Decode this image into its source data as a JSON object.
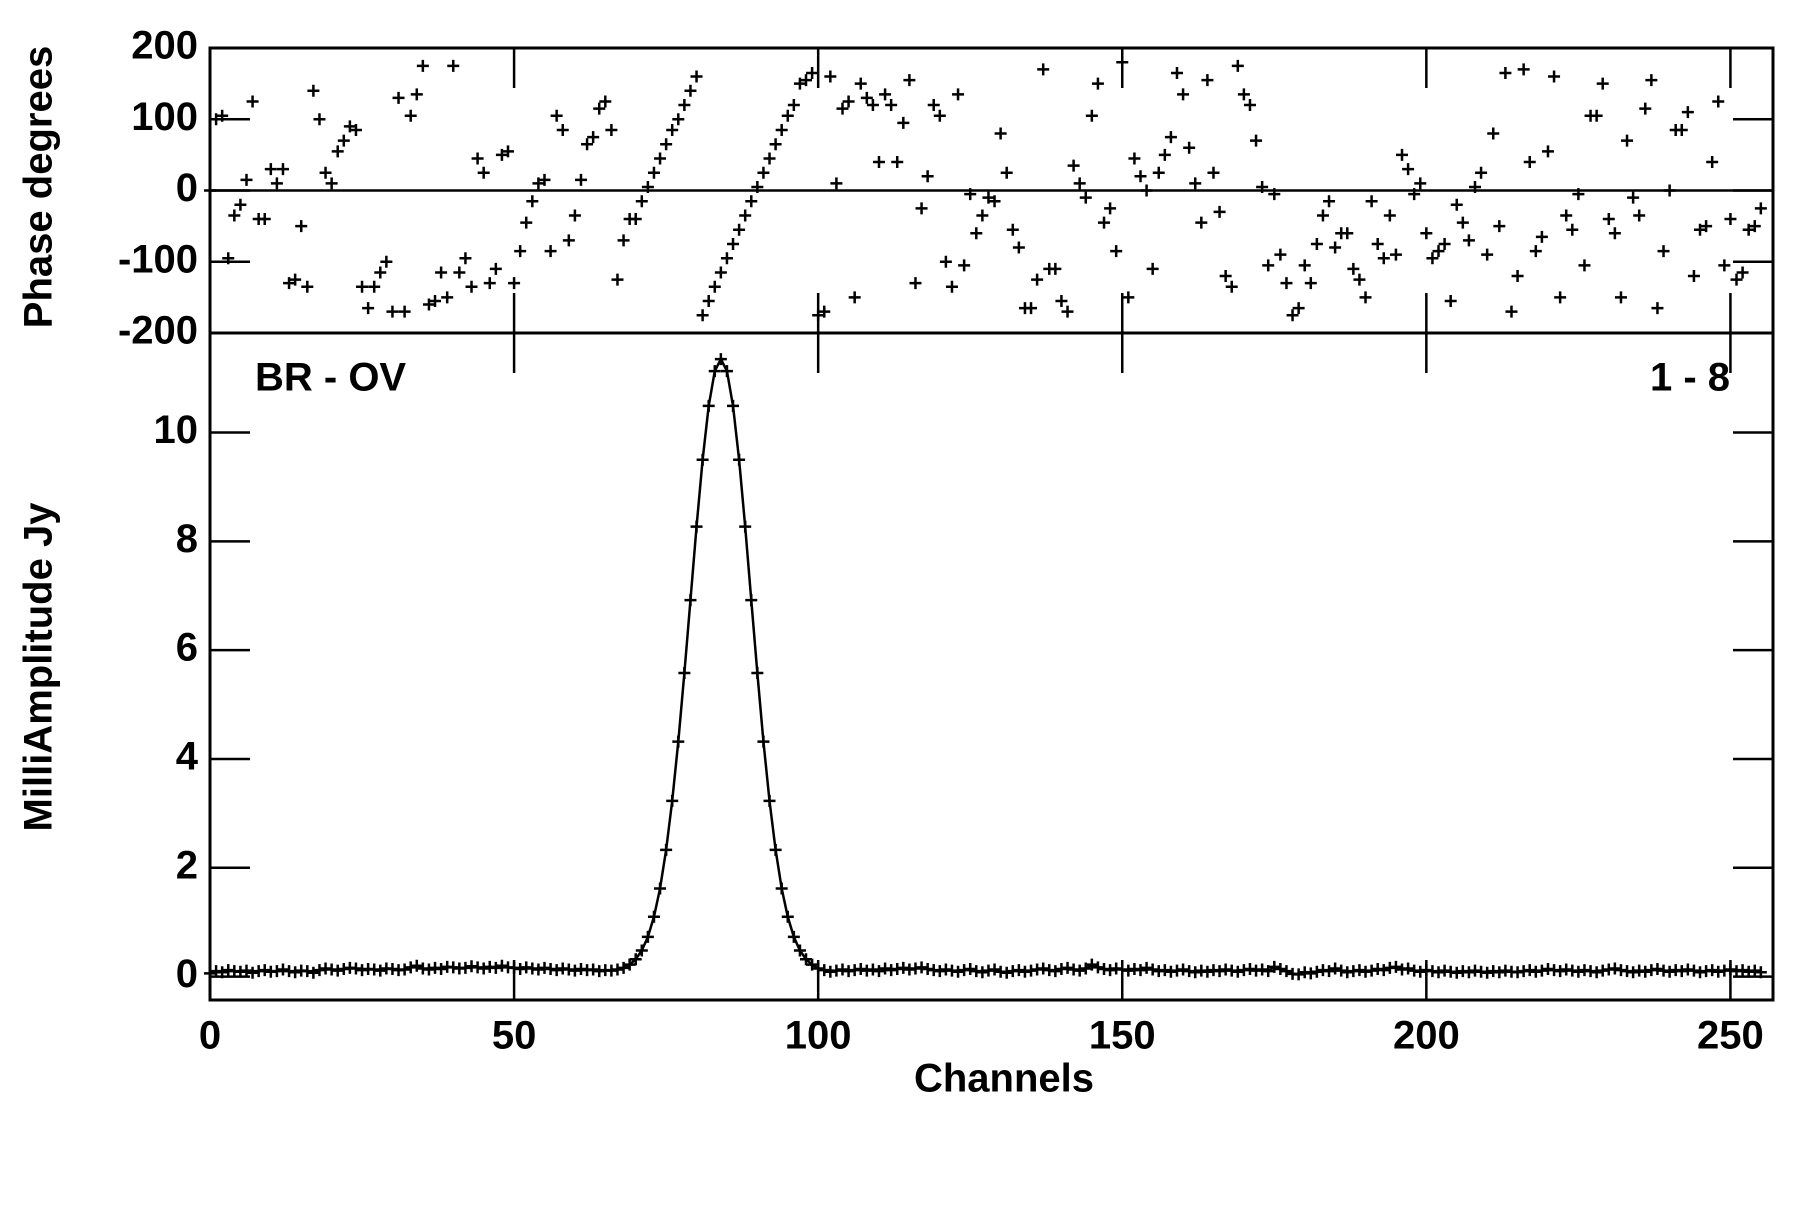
{
  "chart_data": [
    {
      "type": "scatter",
      "ylabel": "Phase degrees",
      "marker": "+",
      "color": "#000000",
      "zero_line": true,
      "xlim": [
        0,
        257
      ],
      "xticks": [
        0,
        50,
        100,
        150,
        200,
        250
      ],
      "ylim": [
        -200,
        200
      ],
      "yticks": [
        -200,
        -100,
        0,
        100,
        200
      ],
      "x": [
        0,
        1,
        2,
        3,
        4,
        5,
        6,
        7,
        8,
        9,
        10,
        11,
        12,
        13,
        14,
        15,
        16,
        17,
        18,
        19,
        20,
        21,
        22,
        23,
        24,
        25,
        26,
        27,
        28,
        29,
        30,
        31,
        32,
        33,
        34,
        35,
        36,
        37,
        38,
        39,
        40,
        41,
        42,
        43,
        44,
        45,
        46,
        47,
        48,
        49,
        50,
        51,
        52,
        53,
        54,
        55,
        56,
        57,
        58,
        59,
        60,
        61,
        62,
        63,
        64,
        65,
        66,
        67,
        68,
        69,
        70,
        71,
        72,
        73,
        74,
        75,
        76,
        77,
        78,
        79,
        80,
        81,
        82,
        83,
        84,
        85,
        86,
        87,
        88,
        89,
        90,
        91,
        92,
        93,
        94,
        95,
        96,
        97,
        98,
        99,
        100,
        101,
        102,
        103,
        104,
        105,
        106,
        107,
        108,
        109,
        110,
        111,
        112,
        113,
        114,
        115,
        116,
        117,
        118,
        119,
        120,
        121,
        122,
        123,
        124,
        125,
        126,
        127,
        128,
        129,
        130,
        131,
        132,
        133,
        134,
        135,
        136,
        137,
        138,
        139,
        140,
        141,
        142,
        143,
        144,
        145,
        146,
        147,
        148,
        149,
        150,
        151,
        152,
        153,
        154,
        155,
        156,
        157,
        158,
        159,
        160,
        161,
        162,
        163,
        164,
        165,
        166,
        167,
        168,
        169,
        170,
        171,
        172,
        173,
        174,
        175,
        176,
        177,
        178,
        179,
        180,
        181,
        182,
        183,
        184,
        185,
        186,
        187,
        188,
        189,
        190,
        191,
        192,
        193,
        194,
        195,
        196,
        197,
        198,
        199,
        200,
        201,
        202,
        203,
        204,
        205,
        206,
        207,
        208,
        209,
        210,
        211,
        212,
        213,
        214,
        215,
        216,
        217,
        218,
        219,
        220,
        221,
        222,
        223,
        224,
        225,
        226,
        227,
        228,
        229,
        230,
        231,
        232,
        233,
        234,
        235,
        236,
        237,
        238,
        239,
        240,
        241,
        242,
        243,
        244,
        245,
        246,
        247,
        248,
        249,
        250,
        251,
        252,
        253,
        254,
        255
      ],
      "values": [
        0,
        100,
        105,
        -95,
        -35,
        -20,
        15,
        125,
        -40,
        -40,
        30,
        10,
        30,
        -130,
        -125,
        -50,
        -135,
        140,
        100,
        25,
        10,
        55,
        70,
        90,
        85,
        -135,
        -165,
        -135,
        -115,
        -100,
        -170,
        130,
        -170,
        105,
        135,
        175,
        -160,
        -155,
        -115,
        -150,
        175,
        -115,
        -95,
        -135,
        45,
        25,
        -130,
        -110,
        50,
        55,
        -130,
        -85,
        -45,
        -15,
        10,
        15,
        -85,
        105,
        85,
        -70,
        -35,
        15,
        65,
        75,
        115,
        125,
        85,
        -125,
        -70,
        -40,
        -40,
        -15,
        5,
        25,
        45,
        65,
        85,
        100,
        120,
        140,
        160,
        -175,
        -155,
        -135,
        -115,
        -95,
        -75,
        -55,
        -35,
        -15,
        5,
        25,
        45,
        65,
        85,
        105,
        120,
        150,
        155,
        165,
        -175,
        -170,
        160,
        10,
        115,
        125,
        -150,
        150,
        130,
        120,
        40,
        135,
        120,
        40,
        95,
        155,
        -130,
        -25,
        20,
        120,
        105,
        -100,
        -135,
        135,
        -105,
        -5,
        -60,
        -35,
        -10,
        -15,
        80,
        25,
        -55,
        -80,
        -165,
        -165,
        -125,
        170,
        -110,
        -110,
        -155,
        -170,
        35,
        10,
        -10,
        105,
        150,
        -45,
        -25,
        -85,
        180,
        -150,
        45,
        20,
        0,
        -110,
        25,
        50,
        75,
        165,
        135,
        60,
        10,
        -45,
        155,
        25,
        -30,
        -120,
        -135,
        175,
        135,
        120,
        70,
        5,
        -105,
        -5,
        -90,
        -130,
        -175,
        -165,
        -105,
        -130,
        -75,
        -35,
        -15,
        -80,
        -60,
        -60,
        -110,
        -125,
        -150,
        -15,
        -75,
        -95,
        -35,
        -90,
        50,
        30,
        -5,
        10,
        -60,
        -95,
        -85,
        -75,
        -155,
        -20,
        -45,
        -70,
        5,
        25,
        -90,
        80,
        -50,
        165,
        -170,
        -120,
        170,
        40,
        -85,
        -65,
        55,
        160,
        -150,
        -35,
        -55,
        -5,
        -105,
        105,
        105,
        150,
        -40,
        -60,
        -150,
        70,
        -10,
        -35,
        115,
        155,
        -165,
        -85,
        0,
        85,
        85,
        110,
        -120,
        -55,
        -50,
        40,
        125,
        -105,
        -40,
        -125,
        -115,
        -55,
        -50,
        -25
      ]
    },
    {
      "type": "line",
      "ylabel": "MilliAmplitude Jy",
      "xlabel": "Channels",
      "marker": "+",
      "color": "#000000",
      "annotations": [
        "BR - OV",
        "1 - 8"
      ],
      "xlim": [
        0,
        257
      ],
      "xticks": [
        0,
        50,
        100,
        150,
        200,
        250
      ],
      "ylim": [
        -0.43,
        11.83
      ],
      "yticks": [
        0,
        2,
        4,
        6,
        8,
        10
      ],
      "x": [
        0,
        1,
        2,
        3,
        4,
        5,
        6,
        7,
        8,
        9,
        10,
        11,
        12,
        13,
        14,
        15,
        16,
        17,
        18,
        19,
        20,
        21,
        22,
        23,
        24,
        25,
        26,
        27,
        28,
        29,
        30,
        31,
        32,
        33,
        34,
        35,
        36,
        37,
        38,
        39,
        40,
        41,
        42,
        43,
        44,
        45,
        46,
        47,
        48,
        49,
        50,
        51,
        52,
        53,
        54,
        55,
        56,
        57,
        58,
        59,
        60,
        61,
        62,
        63,
        64,
        65,
        66,
        67,
        68,
        69,
        70,
        71,
        72,
        73,
        74,
        75,
        76,
        77,
        78,
        79,
        80,
        81,
        82,
        83,
        84,
        85,
        86,
        87,
        88,
        89,
        90,
        91,
        92,
        93,
        94,
        95,
        96,
        97,
        98,
        99,
        100,
        101,
        102,
        103,
        104,
        105,
        106,
        107,
        108,
        109,
        110,
        111,
        112,
        113,
        114,
        115,
        116,
        117,
        118,
        119,
        120,
        121,
        122,
        123,
        124,
        125,
        126,
        127,
        128,
        129,
        130,
        131,
        132,
        133,
        134,
        135,
        136,
        137,
        138,
        139,
        140,
        141,
        142,
        143,
        144,
        145,
        146,
        147,
        148,
        149,
        150,
        151,
        152,
        153,
        154,
        155,
        156,
        157,
        158,
        159,
        160,
        161,
        162,
        163,
        164,
        165,
        166,
        167,
        168,
        169,
        170,
        171,
        172,
        173,
        174,
        175,
        176,
        177,
        178,
        179,
        180,
        181,
        182,
        183,
        184,
        185,
        186,
        187,
        188,
        189,
        190,
        191,
        192,
        193,
        194,
        195,
        196,
        197,
        198,
        199,
        200,
        201,
        202,
        203,
        204,
        205,
        206,
        207,
        208,
        209,
        210,
        211,
        212,
        213,
        214,
        215,
        216,
        217,
        218,
        219,
        220,
        221,
        222,
        223,
        224,
        225,
        226,
        227,
        228,
        229,
        230,
        231,
        232,
        233,
        234,
        235,
        236,
        237,
        238,
        239,
        240,
        241,
        242,
        243,
        244,
        245,
        246,
        247,
        248,
        249,
        250,
        251,
        252,
        253,
        254,
        255
      ],
      "values": [
        0.06,
        0.1,
        0.08,
        0.12,
        0.1,
        0.09,
        0.11,
        0.07,
        0.1,
        0.12,
        0.09,
        0.1,
        0.13,
        0.1,
        0.08,
        0.11,
        0.1,
        0.07,
        0.12,
        0.15,
        0.13,
        0.11,
        0.14,
        0.16,
        0.15,
        0.12,
        0.14,
        0.13,
        0.11,
        0.15,
        0.14,
        0.12,
        0.13,
        0.17,
        0.2,
        0.15,
        0.13,
        0.16,
        0.14,
        0.18,
        0.17,
        0.15,
        0.16,
        0.19,
        0.17,
        0.15,
        0.18,
        0.16,
        0.2,
        0.17,
        0.16,
        0.14,
        0.17,
        0.15,
        0.13,
        0.16,
        0.14,
        0.12,
        0.15,
        0.13,
        0.11,
        0.14,
        0.12,
        0.13,
        0.1,
        0.12,
        0.11,
        0.13,
        0.16,
        0.22,
        0.32,
        0.48,
        0.73,
        1.1,
        1.62,
        2.33,
        3.23,
        4.32,
        5.58,
        6.92,
        8.27,
        9.5,
        10.49,
        11.13,
        11.35,
        11.13,
        10.49,
        9.5,
        8.27,
        6.92,
        5.58,
        4.32,
        3.23,
        2.33,
        1.62,
        1.1,
        0.73,
        0.48,
        0.32,
        0.22,
        0.15,
        0.12,
        0.09,
        0.11,
        0.13,
        0.1,
        0.12,
        0.14,
        0.11,
        0.13,
        0.1,
        0.15,
        0.12,
        0.14,
        0.16,
        0.13,
        0.15,
        0.17,
        0.14,
        0.12,
        0.1,
        0.13,
        0.11,
        0.09,
        0.12,
        0.14,
        0.1,
        0.08,
        0.11,
        0.13,
        0.09,
        0.07,
        0.1,
        0.12,
        0.09,
        0.11,
        0.13,
        0.15,
        0.12,
        0.1,
        0.14,
        0.16,
        0.13,
        0.11,
        0.15,
        0.22,
        0.17,
        0.14,
        0.12,
        0.15,
        0.13,
        0.11,
        0.14,
        0.12,
        0.16,
        0.13,
        0.1,
        0.12,
        0.09,
        0.11,
        0.13,
        0.1,
        0.08,
        0.11,
        0.09,
        0.12,
        0.1,
        0.13,
        0.11,
        0.09,
        0.12,
        0.14,
        0.11,
        0.13,
        0.1,
        0.18,
        0.14,
        0.1,
        0.05,
        0.04,
        0.08,
        0.06,
        0.09,
        0.12,
        0.1,
        0.15,
        0.11,
        0.08,
        0.1,
        0.12,
        0.09,
        0.11,
        0.14,
        0.12,
        0.16,
        0.18,
        0.13,
        0.15,
        0.11,
        0.09,
        0.12,
        0.1,
        0.08,
        0.11,
        0.09,
        0.07,
        0.1,
        0.08,
        0.11,
        0.09,
        0.07,
        0.1,
        0.08,
        0.11,
        0.09,
        0.08,
        0.1,
        0.12,
        0.09,
        0.11,
        0.14,
        0.12,
        0.1,
        0.13,
        0.11,
        0.09,
        0.12,
        0.1,
        0.08,
        0.11,
        0.13,
        0.15,
        0.12,
        0.1,
        0.08,
        0.11,
        0.09,
        0.12,
        0.14,
        0.11,
        0.09,
        0.12,
        0.1,
        0.13,
        0.11,
        0.08,
        0.1,
        0.12,
        0.09,
        0.11,
        0.13,
        0.1,
        0.12,
        0.09,
        0.11,
        0.08
      ]
    }
  ]
}
